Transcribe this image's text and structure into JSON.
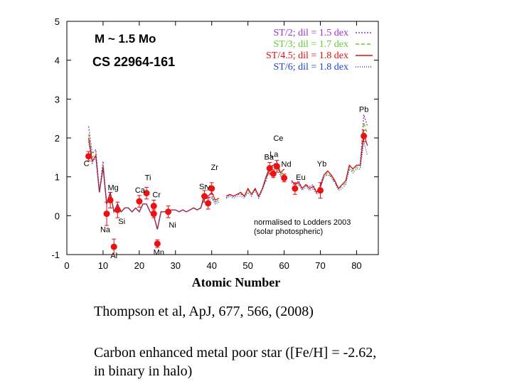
{
  "chart_data": {
    "type": "line",
    "title": "M ~ 1.5 Mo",
    "star": "CS 22964-161",
    "xlabel": "Atomic Number",
    "ylabel": "",
    "xlim": [
      0,
      86
    ],
    "ylim": [
      -1,
      5
    ],
    "x_ticks": [
      "0",
      "10",
      "20",
      "30",
      "40",
      "50",
      "60",
      "70",
      "80"
    ],
    "y_ticks": [
      "-1",
      "0",
      "1",
      "2",
      "3",
      "4",
      "5"
    ],
    "legend_position": "top-right",
    "note_line1": "normalised to Lodders 2003",
    "note_line2": "(solar photospheric)",
    "series": [
      {
        "name": "ST/2; dil = 1.5 dex",
        "color": "#9933cc",
        "dash": "2,2",
        "x": [
          6,
          7,
          8,
          9,
          10,
          11,
          12,
          13,
          14,
          15,
          16,
          17,
          18,
          19,
          20,
          21,
          22,
          23,
          24,
          25,
          26,
          27,
          28,
          29,
          30,
          31,
          32,
          33,
          34,
          35,
          36,
          37,
          38,
          39,
          40,
          41,
          42,
          44,
          45,
          46,
          47,
          48,
          49,
          50,
          51,
          52,
          53,
          54,
          55,
          56,
          57,
          58,
          59,
          60,
          62,
          63,
          64,
          65,
          66,
          67,
          68,
          69,
          70,
          71,
          72,
          73,
          74,
          75,
          76,
          77,
          78,
          79,
          80,
          81,
          82,
          83
        ],
        "y": [
          2.3,
          1.6,
          1.7,
          0.6,
          1.4,
          0.3,
          0.6,
          0.1,
          0.3,
          0.1,
          0.2,
          0.2,
          0.1,
          0.2,
          0.1,
          0.3,
          0.3,
          0.1,
          0.0,
          -0.35,
          0.1,
          0.1,
          0.1,
          0.15,
          0.15,
          0.1,
          0.15,
          0.1,
          0.15,
          0.2,
          0.15,
          0.2,
          0.45,
          0.45,
          0.5,
          0.35,
          0.4,
          0.45,
          0.55,
          0.5,
          0.55,
          0.55,
          0.5,
          0.7,
          0.55,
          0.7,
          0.5,
          0.7,
          0.9,
          1.2,
          1.3,
          1.4,
          1.1,
          1.2,
          0.9,
          0.8,
          0.9,
          0.7,
          0.8,
          0.75,
          0.8,
          0.6,
          0.8,
          1.05,
          1.15,
          1.05,
          0.9,
          0.7,
          0.8,
          0.9,
          1.3,
          1.2,
          1.3,
          1.3,
          2.6,
          2.3
        ]
      },
      {
        "name": "ST/3; dil = 1.7 dex",
        "color": "#66cc33",
        "dash": "5,3",
        "x": [
          6,
          7,
          8,
          9,
          10,
          11,
          12,
          13,
          14,
          15,
          16,
          17,
          18,
          19,
          20,
          21,
          22,
          23,
          24,
          25,
          26,
          27,
          28,
          29,
          30,
          31,
          32,
          33,
          34,
          35,
          36,
          37,
          38,
          39,
          40,
          41,
          42,
          44,
          45,
          46,
          47,
          48,
          49,
          50,
          51,
          52,
          53,
          54,
          55,
          56,
          57,
          58,
          59,
          60,
          62,
          63,
          64,
          65,
          66,
          67,
          68,
          69,
          70,
          71,
          72,
          73,
          74,
          75,
          76,
          77,
          78,
          79,
          80,
          81,
          82,
          83
        ],
        "y": [
          2.1,
          1.5,
          1.6,
          0.6,
          1.3,
          0.3,
          0.6,
          0.1,
          0.3,
          0.1,
          0.2,
          0.2,
          0.1,
          0.2,
          0.1,
          0.3,
          0.3,
          0.1,
          0.0,
          -0.35,
          0.1,
          0.1,
          0.1,
          0.15,
          0.15,
          0.1,
          0.15,
          0.1,
          0.15,
          0.2,
          0.15,
          0.2,
          0.5,
          0.45,
          0.45,
          0.35,
          0.4,
          0.5,
          0.55,
          0.5,
          0.55,
          0.6,
          0.5,
          0.65,
          0.55,
          0.7,
          0.5,
          0.7,
          0.95,
          1.2,
          1.25,
          1.3,
          1.05,
          1.15,
          0.9,
          0.8,
          0.85,
          0.7,
          0.8,
          0.7,
          0.75,
          0.6,
          0.75,
          1.0,
          1.1,
          1.0,
          0.85,
          0.7,
          0.75,
          0.85,
          1.25,
          1.15,
          1.25,
          1.25,
          2.4,
          2.1
        ]
      },
      {
        "name": "ST/4.5; dil = 1.8 dex",
        "color": "#dd1111",
        "dash": "",
        "x": [
          6,
          7,
          8,
          9,
          10,
          11,
          12,
          13,
          14,
          15,
          16,
          17,
          18,
          19,
          20,
          21,
          22,
          23,
          24,
          25,
          26,
          27,
          28,
          29,
          30,
          31,
          32,
          33,
          34,
          35,
          36,
          37,
          38,
          39,
          40,
          41,
          42,
          44,
          45,
          46,
          47,
          48,
          49,
          50,
          51,
          52,
          53,
          54,
          55,
          56,
          57,
          58,
          59,
          60,
          62,
          63,
          64,
          65,
          66,
          67,
          68,
          69,
          70,
          71,
          72,
          73,
          74,
          75,
          76,
          77,
          78,
          79,
          80,
          81,
          82,
          83
        ],
        "y": [
          2.0,
          1.4,
          1.55,
          0.6,
          1.25,
          0.3,
          0.6,
          0.1,
          0.3,
          0.1,
          0.2,
          0.2,
          0.1,
          0.2,
          0.1,
          0.3,
          0.3,
          0.1,
          0.0,
          -0.35,
          0.1,
          0.1,
          0.1,
          0.15,
          0.15,
          0.1,
          0.15,
          0.1,
          0.15,
          0.2,
          0.15,
          0.2,
          0.55,
          0.5,
          0.6,
          0.4,
          0.45,
          0.5,
          0.55,
          0.5,
          0.55,
          0.6,
          0.5,
          0.7,
          0.55,
          0.7,
          0.5,
          0.7,
          1.0,
          1.25,
          1.3,
          1.35,
          1.1,
          1.2,
          0.9,
          0.8,
          0.85,
          0.7,
          0.8,
          0.7,
          0.75,
          0.6,
          0.75,
          1.05,
          1.15,
          1.05,
          0.9,
          0.7,
          0.8,
          0.9,
          1.3,
          1.2,
          1.3,
          1.3,
          2.1,
          1.8
        ]
      },
      {
        "name": "ST/6; dil = 1.8 dex",
        "color": "#2244cc",
        "dash": "1,2",
        "x": [
          6,
          7,
          8,
          9,
          10,
          11,
          12,
          13,
          14,
          15,
          16,
          17,
          18,
          19,
          20,
          21,
          22,
          23,
          24,
          25,
          26,
          27,
          28,
          29,
          30,
          31,
          32,
          33,
          34,
          35,
          36,
          37,
          38,
          39,
          40,
          41,
          42,
          44,
          45,
          46,
          47,
          48,
          49,
          50,
          51,
          52,
          53,
          54,
          55,
          56,
          57,
          58,
          59,
          60,
          62,
          63,
          64,
          65,
          66,
          67,
          68,
          69,
          70,
          71,
          72,
          73,
          74,
          75,
          76,
          77,
          78,
          79,
          80,
          81,
          82,
          83
        ],
        "y": [
          1.9,
          1.35,
          1.5,
          0.6,
          1.2,
          0.3,
          0.6,
          0.1,
          0.3,
          0.1,
          0.2,
          0.2,
          0.1,
          0.2,
          0.1,
          0.3,
          0.3,
          0.1,
          0.0,
          -0.35,
          0.1,
          0.1,
          0.1,
          0.15,
          0.15,
          0.1,
          0.15,
          0.1,
          0.15,
          0.2,
          0.15,
          0.2,
          0.5,
          0.4,
          0.45,
          0.3,
          0.35,
          0.45,
          0.5,
          0.45,
          0.5,
          0.5,
          0.45,
          0.6,
          0.5,
          0.65,
          0.45,
          0.65,
          0.95,
          1.2,
          1.2,
          1.25,
          1.0,
          1.1,
          0.85,
          0.75,
          0.8,
          0.65,
          0.75,
          0.65,
          0.7,
          0.55,
          0.7,
          1.0,
          1.05,
          1.0,
          0.85,
          0.65,
          0.7,
          0.8,
          1.2,
          1.1,
          1.2,
          1.2,
          1.9,
          1.55
        ]
      }
    ],
    "observations": [
      {
        "label": "C",
        "x": 6,
        "y": 1.53,
        "err": 0.12
      },
      {
        "label": "Mg",
        "x": 12,
        "y": 0.4,
        "err": 0.2
      },
      {
        "label": "Na",
        "x": 11,
        "y": 0.05,
        "err": 0.3
      },
      {
        "label": "Al",
        "x": 13,
        "y": -0.8,
        "err": 0.2
      },
      {
        "label": "Si",
        "x": 14,
        "y": 0.15,
        "err": 0.2
      },
      {
        "label": "Ca",
        "x": 20,
        "y": 0.37,
        "err": 0.15
      },
      {
        "label": "Ti",
        "x": 22,
        "y": 0.58,
        "err": 0.15
      },
      {
        "label": "Cr",
        "x": 24,
        "y": 0.25,
        "err": 0.15
      },
      {
        "label": "Mn",
        "x": 25,
        "y": -0.72,
        "err": 0.1
      },
      {
        "label": "",
        "x": 24,
        "y": 0.05,
        "err": 0.1
      },
      {
        "label": "Ni",
        "x": 28,
        "y": 0.1,
        "err": 0.15
      },
      {
        "label": "Sr",
        "x": 38,
        "y": 0.5,
        "err": 0.15
      },
      {
        "label": "Y",
        "x": 39,
        "y": 0.32,
        "err": 0.15
      },
      {
        "label": "Zr",
        "x": 40,
        "y": 0.7,
        "err": 0.15
      },
      {
        "label": "Ba",
        "x": 56,
        "y": 1.22,
        "err": 0.15
      },
      {
        "label": "La",
        "x": 57,
        "y": 1.08,
        "err": 0.1
      },
      {
        "label": "Ce",
        "x": 58,
        "y": 1.27,
        "err": 0.15
      },
      {
        "label": "Nd",
        "x": 60,
        "y": 0.97,
        "err": 0.1
      },
      {
        "label": "Eu",
        "x": 63,
        "y": 0.7,
        "err": 0.15
      },
      {
        "label": "Yb",
        "x": 70,
        "y": 0.65,
        "err": 0.2
      },
      {
        "label": "Pb",
        "x": 82,
        "y": 2.05,
        "err": 0.15
      }
    ]
  },
  "caption": {
    "line1": "Thompson et al, ApJ, 677, 566, (2008)",
    "line2": "Carbon enhanced metal poor star ([Fe/H] = -2.62,",
    "line3": "in binary in halo)"
  }
}
